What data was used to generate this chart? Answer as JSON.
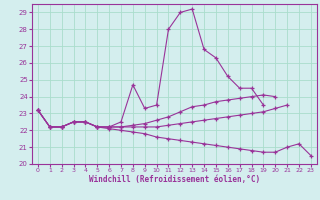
{
  "xlabel": "Windchill (Refroidissement éolien,°C)",
  "bg_color": "#d4eeee",
  "grid_color": "#aaddcc",
  "line_color": "#993399",
  "xlim": [
    -0.5,
    23.5
  ],
  "ylim": [
    20,
    29.5
  ],
  "yticks": [
    20,
    21,
    22,
    23,
    24,
    25,
    26,
    27,
    28,
    29
  ],
  "xticks": [
    0,
    1,
    2,
    3,
    4,
    5,
    6,
    7,
    8,
    9,
    10,
    11,
    12,
    13,
    14,
    15,
    16,
    17,
    18,
    19,
    20,
    21,
    22,
    23
  ],
  "series": [
    {
      "x": [
        0,
        1,
        2,
        3,
        4,
        5,
        6,
        7,
        8,
        9,
        10,
        11,
        12,
        13,
        14,
        15,
        16,
        17,
        18,
        19
      ],
      "y": [
        23.2,
        22.2,
        22.2,
        22.5,
        22.5,
        22.2,
        22.2,
        22.5,
        24.7,
        23.3,
        23.5,
        28.0,
        29.0,
        29.2,
        26.8,
        26.3,
        25.2,
        24.5,
        24.5,
        23.5
      ]
    },
    {
      "x": [
        0,
        1,
        2,
        3,
        4,
        5,
        6,
        7,
        8,
        9,
        10,
        11,
        12,
        13,
        14,
        15,
        16,
        17,
        18,
        19,
        20
      ],
      "y": [
        23.2,
        22.2,
        22.2,
        22.5,
        22.5,
        22.2,
        22.2,
        22.2,
        22.3,
        22.4,
        22.6,
        22.8,
        23.1,
        23.4,
        23.5,
        23.7,
        23.8,
        23.9,
        24.0,
        24.1,
        24.0
      ]
    },
    {
      "x": [
        0,
        1,
        2,
        3,
        4,
        5,
        6,
        7,
        8,
        9,
        10,
        11,
        12,
        13,
        14,
        15,
        16,
        17,
        18,
        19,
        20,
        21
      ],
      "y": [
        23.2,
        22.2,
        22.2,
        22.5,
        22.5,
        22.2,
        22.2,
        22.2,
        22.2,
        22.2,
        22.2,
        22.3,
        22.4,
        22.5,
        22.6,
        22.7,
        22.8,
        22.9,
        23.0,
        23.1,
        23.3,
        23.5
      ]
    },
    {
      "x": [
        0,
        1,
        2,
        3,
        4,
        5,
        6,
        7,
        8,
        9,
        10,
        11,
        12,
        13,
        14,
        15,
        16,
        17,
        18,
        19,
        20,
        21,
        22,
        23
      ],
      "y": [
        23.2,
        22.2,
        22.2,
        22.5,
        22.5,
        22.2,
        22.1,
        22.0,
        21.9,
        21.8,
        21.6,
        21.5,
        21.4,
        21.3,
        21.2,
        21.1,
        21.0,
        20.9,
        20.8,
        20.7,
        20.7,
        21.0,
        21.2,
        20.5
      ]
    }
  ]
}
